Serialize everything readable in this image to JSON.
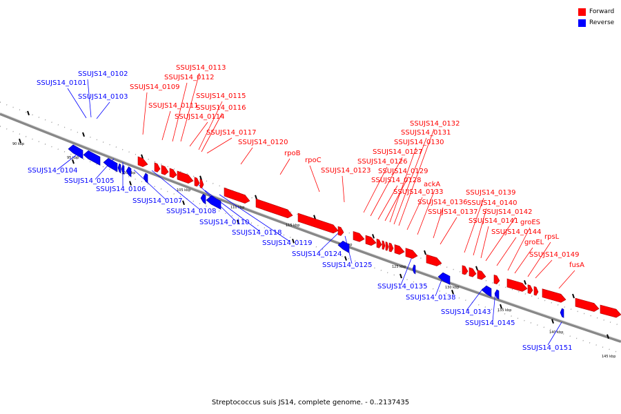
{
  "legend": [
    {
      "label": "Forward",
      "color": "#ff0000"
    },
    {
      "label": "Reverse",
      "color": "#0000ff"
    }
  ],
  "caption": "Streptococcus suis JS14, complete genome. - 0..2137435",
  "colors": {
    "forward": "#ff0000",
    "reverse": "#0000ff",
    "backbone": "#888888",
    "tick": "#000000"
  },
  "ticks": [
    "90 kbp",
    "95 kbp",
    "100 kbp",
    "105 kbp",
    "110 kbp",
    "115 kbp",
    "120 kbp",
    "125 kbp",
    "130 kbp",
    "135 kbp",
    "140 kbp",
    "145 kbp"
  ],
  "forward_labels": [
    "SSUJS14_0109",
    "SSUJS14_0111",
    "SSUJS14_0112",
    "SSUJS14_0113",
    "SSUJS14_0114",
    "SSUJS14_0115",
    "SSUJS14_0116",
    "SSUJS14_0117",
    "SSUJS14_0120",
    "rpoB",
    "rpoC",
    "SSUJS14_0123",
    "SSUJS14_0126",
    "SSUJS14_0127",
    "SSUJS14_0128",
    "SSUJS14_0129",
    "SSUJS14_0130",
    "SSUJS14_0131",
    "SSUJS14_0132",
    "SSUJS14_0133",
    "ackA",
    "SSUJS14_0136",
    "SSUJS14_0137",
    "SSUJS14_0139",
    "SSUJS14_0140",
    "SSUJS14_0141",
    "SSUJS14_0142",
    "SSUJS14_0144",
    "groES",
    "groEL",
    "rpsL",
    "SSUJS14_0149",
    "fusA"
  ],
  "reverse_labels": [
    "SSUJS14_0101",
    "SSUJS14_0102",
    "SSUJS14_0103",
    "SSUJS14_0104",
    "SSUJS14_0105",
    "SSUJS14_0106",
    "SSUJS14_0107",
    "SSUJS14_0108",
    "SSUJS14_0110",
    "SSUJS14_0118",
    "SSUJS14_0119",
    "SSUJS14_0124",
    "SSUJS14_0125",
    "SSUJS14_0135",
    "SSUJS14_0138",
    "SSUJS14_0143",
    "SSUJS14_0145",
    "SSUJS14_0151"
  ]
}
